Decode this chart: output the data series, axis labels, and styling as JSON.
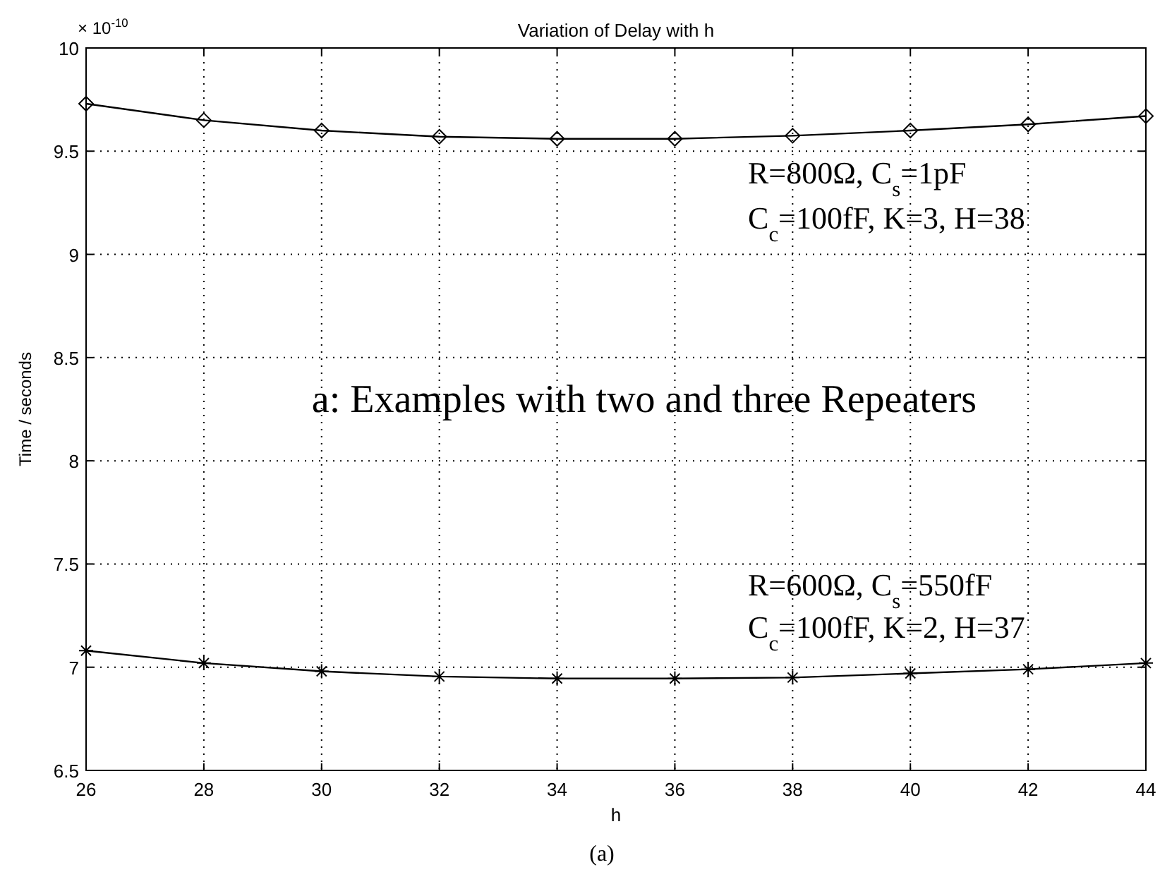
{
  "chart_data": {
    "type": "line",
    "title": "Variation of Delay with h",
    "xlabel": "h",
    "ylabel": "Time / seconds",
    "x": [
      26,
      28,
      30,
      32,
      34,
      36,
      38,
      40,
      42,
      44
    ],
    "series": [
      {
        "color": "#000000",
        "marker": "diamond",
        "values": [
          9.73,
          9.65,
          9.6,
          9.57,
          9.56,
          9.56,
          9.575,
          9.6,
          9.63,
          9.67
        ]
      },
      {
        "color": "#000000",
        "marker": "cross",
        "values": [
          7.08,
          7.02,
          6.98,
          6.955,
          6.945,
          6.945,
          6.95,
          6.97,
          6.99,
          7.02
        ]
      }
    ],
    "xlim": [
      26,
      44
    ],
    "xticks": [
      26,
      28,
      30,
      32,
      34,
      36,
      38,
      40,
      42,
      44
    ],
    "ylim": [
      6.5,
      10
    ],
    "yticks": [
      6.5,
      7,
      7.5,
      8,
      8.5,
      9,
      9.5,
      10
    ],
    "grid": true,
    "line_style": "solid",
    "annotations": [
      "× 10$^{-10}$",
      "R=800Ω, C$_{s}$=1pF",
      "C$_{c}$=100fF, K=3, H=38",
      "a: Examples with two and three Repeaters",
      "R=600Ω, C$_{s}$=550fF",
      "C$_{c}$=100fF, K=2, H=37",
      "(a)"
    ]
  }
}
